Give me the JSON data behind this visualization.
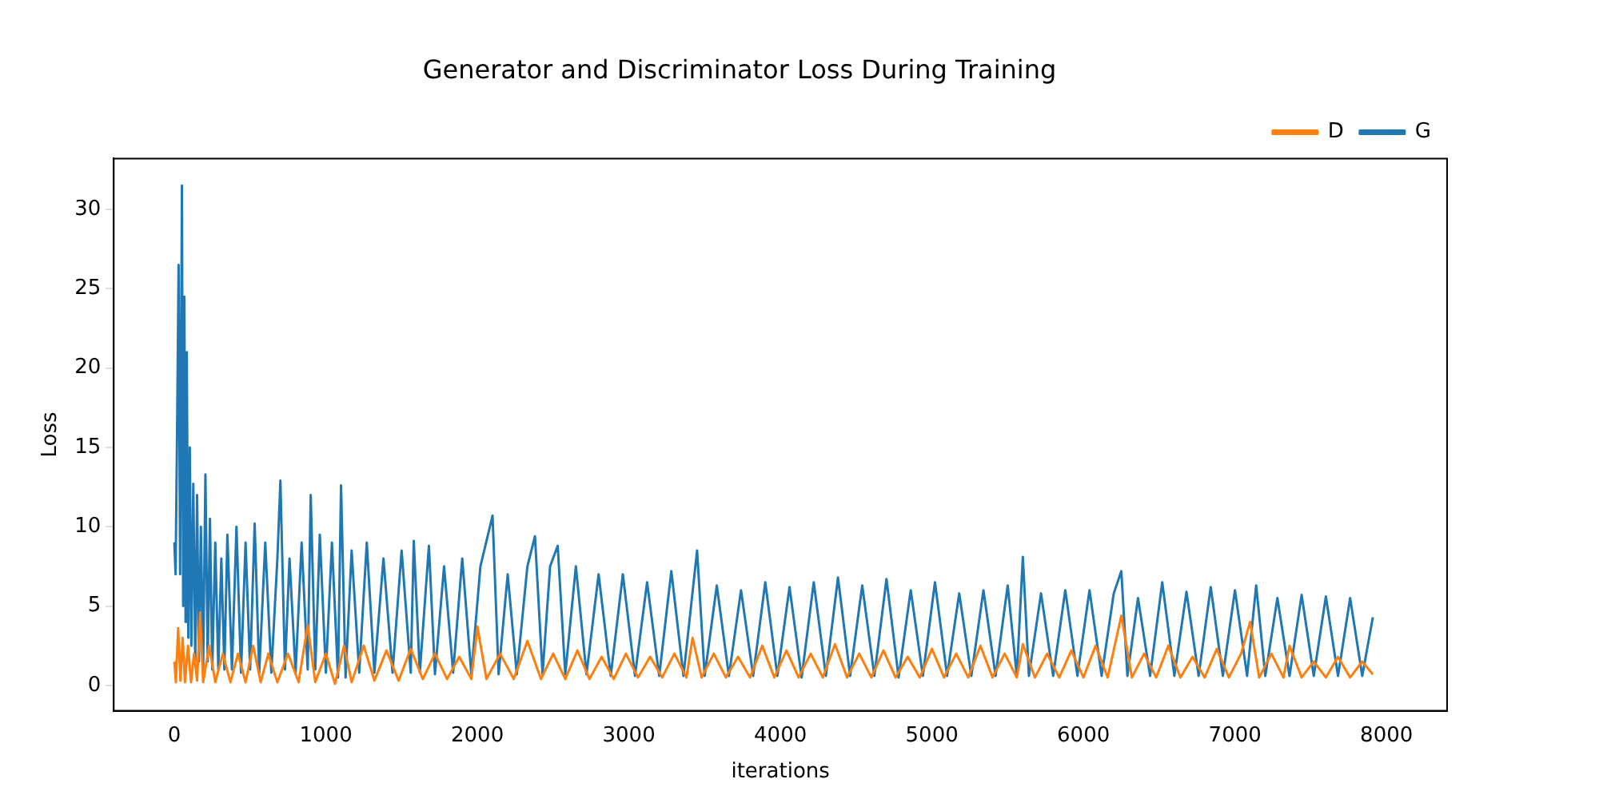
{
  "chart_data": {
    "type": "line",
    "title": "Generator and Discriminator Loss During Training",
    "xlabel": "iterations",
    "ylabel": "Loss",
    "xlim": [
      -400,
      8400
    ],
    "xticks": [
      0,
      1000,
      2000,
      3000,
      4000,
      5000,
      6000,
      7000,
      8000
    ],
    "ylim": [
      -1.6,
      33.2
    ],
    "yticks": [
      0,
      5,
      10,
      15,
      20,
      25,
      30
    ],
    "grid": false,
    "legend": "top right",
    "marker": "none",
    "line_style": "solid",
    "series": [
      {
        "name": "G",
        "color": "#1f77b4",
        "x": [
          0,
          8,
          18,
          28,
          38,
          50,
          58,
          66,
          74,
          82,
          92,
          102,
          112,
          125,
          138,
          150,
          162,
          175,
          190,
          205,
          220,
          235,
          250,
          270,
          290,
          310,
          330,
          350,
          380,
          410,
          440,
          470,
          500,
          530,
          560,
          600,
          640,
          680,
          700,
          730,
          760,
          800,
          840,
          880,
          900,
          930,
          960,
          1000,
          1040,
          1080,
          1100,
          1130,
          1170,
          1220,
          1270,
          1320,
          1380,
          1440,
          1500,
          1560,
          1580,
          1620,
          1680,
          1720,
          1780,
          1840,
          1900,
          1960,
          2020,
          2100,
          2140,
          2200,
          2260,
          2330,
          2380,
          2430,
          2480,
          2530,
          2580,
          2650,
          2720,
          2800,
          2880,
          2960,
          3040,
          3120,
          3200,
          3280,
          3360,
          3450,
          3500,
          3580,
          3660,
          3740,
          3820,
          3900,
          3980,
          4060,
          4140,
          4220,
          4300,
          4380,
          4460,
          4540,
          4620,
          4700,
          4780,
          4860,
          4940,
          5020,
          5100,
          5180,
          5260,
          5340,
          5420,
          5500,
          5560,
          5600,
          5640,
          5720,
          5800,
          5880,
          5960,
          6040,
          6120,
          6200,
          6250,
          6290,
          6360,
          6440,
          6520,
          6600,
          6680,
          6760,
          6840,
          6920,
          7000,
          7080,
          7140,
          7200,
          7280,
          7360,
          7440,
          7520,
          7600,
          7680,
          7760,
          7840,
          7910
        ],
        "values": [
          9,
          7,
          16,
          26.5,
          7,
          31.5,
          5,
          24.5,
          4,
          21,
          3,
          15,
          2.5,
          12.7,
          1.5,
          12,
          1.5,
          10,
          1,
          13.3,
          1.5,
          10.5,
          1,
          9,
          1,
          8,
          1,
          9.5,
          1,
          10,
          0.8,
          9,
          1,
          10.2,
          0.8,
          9,
          0.8,
          8,
          12.9,
          1,
          8,
          0.8,
          9,
          1,
          12,
          1,
          9.5,
          0.8,
          9,
          0.5,
          12.6,
          0.5,
          8.5,
          0.8,
          9,
          0.8,
          8,
          0.8,
          8.5,
          0.8,
          9.1,
          0.8,
          8.8,
          0.7,
          7.5,
          0.8,
          8,
          0.7,
          7.5,
          10.7,
          0.7,
          7,
          0.7,
          7.5,
          9.4,
          0.7,
          7.5,
          8.8,
          0.7,
          7.5,
          0.7,
          7,
          0.6,
          7,
          0.6,
          6.5,
          0.6,
          7.2,
          0.6,
          8.5,
          0.6,
          6.3,
          0.6,
          6,
          0.6,
          6.5,
          0.6,
          6.2,
          0.5,
          6.5,
          0.6,
          6.8,
          0.6,
          6.3,
          0.6,
          6.7,
          0.5,
          6,
          0.6,
          6.5,
          0.6,
          5.8,
          0.6,
          6,
          0.6,
          6.3,
          0.6,
          8.1,
          0.6,
          5.8,
          0.6,
          6,
          0.6,
          6,
          0.6,
          5.8,
          7.2,
          0.6,
          5.5,
          0.6,
          6.5,
          0.6,
          5.9,
          0.6,
          6.2,
          0.6,
          6,
          0.6,
          6.3,
          0.6,
          5.5,
          0.6,
          5.7,
          0.6,
          5.6,
          0.6,
          5.5,
          0.6,
          4.3
        ]
      },
      {
        "name": "D",
        "color": "#ff7f0e",
        "x": [
          0,
          10,
          25,
          40,
          55,
          70,
          90,
          110,
          130,
          150,
          170,
          190,
          230,
          270,
          320,
          370,
          420,
          470,
          520,
          570,
          620,
          680,
          750,
          820,
          880,
          930,
          1000,
          1060,
          1120,
          1170,
          1250,
          1320,
          1400,
          1480,
          1560,
          1640,
          1720,
          1800,
          1880,
          1960,
          2000,
          2060,
          2150,
          2240,
          2330,
          2420,
          2500,
          2580,
          2660,
          2740,
          2820,
          2900,
          2980,
          3060,
          3140,
          3220,
          3300,
          3380,
          3420,
          3480,
          3560,
          3640,
          3720,
          3800,
          3880,
          3960,
          4040,
          4120,
          4200,
          4280,
          4360,
          4440,
          4520,
          4600,
          4680,
          4760,
          4840,
          4920,
          5000,
          5080,
          5160,
          5240,
          5320,
          5400,
          5480,
          5560,
          5600,
          5680,
          5760,
          5840,
          5920,
          6000,
          6080,
          6160,
          6250,
          6320,
          6400,
          6480,
          6560,
          6640,
          6720,
          6800,
          6880,
          6960,
          7040,
          7100,
          7160,
          7240,
          7320,
          7360,
          7440,
          7520,
          7600,
          7680,
          7760,
          7840,
          7910
        ],
        "values": [
          1.5,
          0.2,
          3.6,
          0.3,
          3.0,
          0.2,
          2.5,
          0.2,
          2.0,
          0.3,
          4.6,
          0.2,
          2.5,
          0.2,
          2.0,
          0.2,
          2.0,
          0.2,
          2.5,
          0.2,
          2.0,
          0.2,
          2.0,
          0.2,
          3.8,
          0.2,
          2.0,
          0.1,
          2.5,
          0.2,
          2.5,
          0.3,
          2.2,
          0.3,
          2.3,
          0.4,
          2.0,
          0.4,
          1.8,
          0.4,
          3.7,
          0.4,
          2.0,
          0.4,
          2.8,
          0.4,
          2.0,
          0.4,
          2.2,
          0.4,
          1.8,
          0.4,
          2.0,
          0.5,
          1.8,
          0.5,
          2.0,
          0.5,
          3.0,
          0.5,
          2.0,
          0.5,
          1.8,
          0.5,
          2.5,
          0.5,
          2.2,
          0.5,
          2.0,
          0.5,
          2.6,
          0.5,
          2.0,
          0.5,
          2.2,
          0.5,
          1.8,
          0.5,
          2.3,
          0.5,
          2.0,
          0.5,
          2.5,
          0.5,
          2.0,
          0.5,
          2.6,
          0.5,
          2.0,
          0.5,
          2.2,
          0.5,
          2.5,
          0.5,
          4.4,
          0.5,
          2.0,
          0.5,
          2.5,
          0.5,
          1.8,
          0.5,
          2.3,
          0.5,
          2.0,
          4.0,
          0.5,
          2.0,
          0.5,
          2.5,
          0.5,
          1.5,
          0.5,
          1.8,
          0.5,
          1.5,
          0.7
        ]
      }
    ]
  }
}
